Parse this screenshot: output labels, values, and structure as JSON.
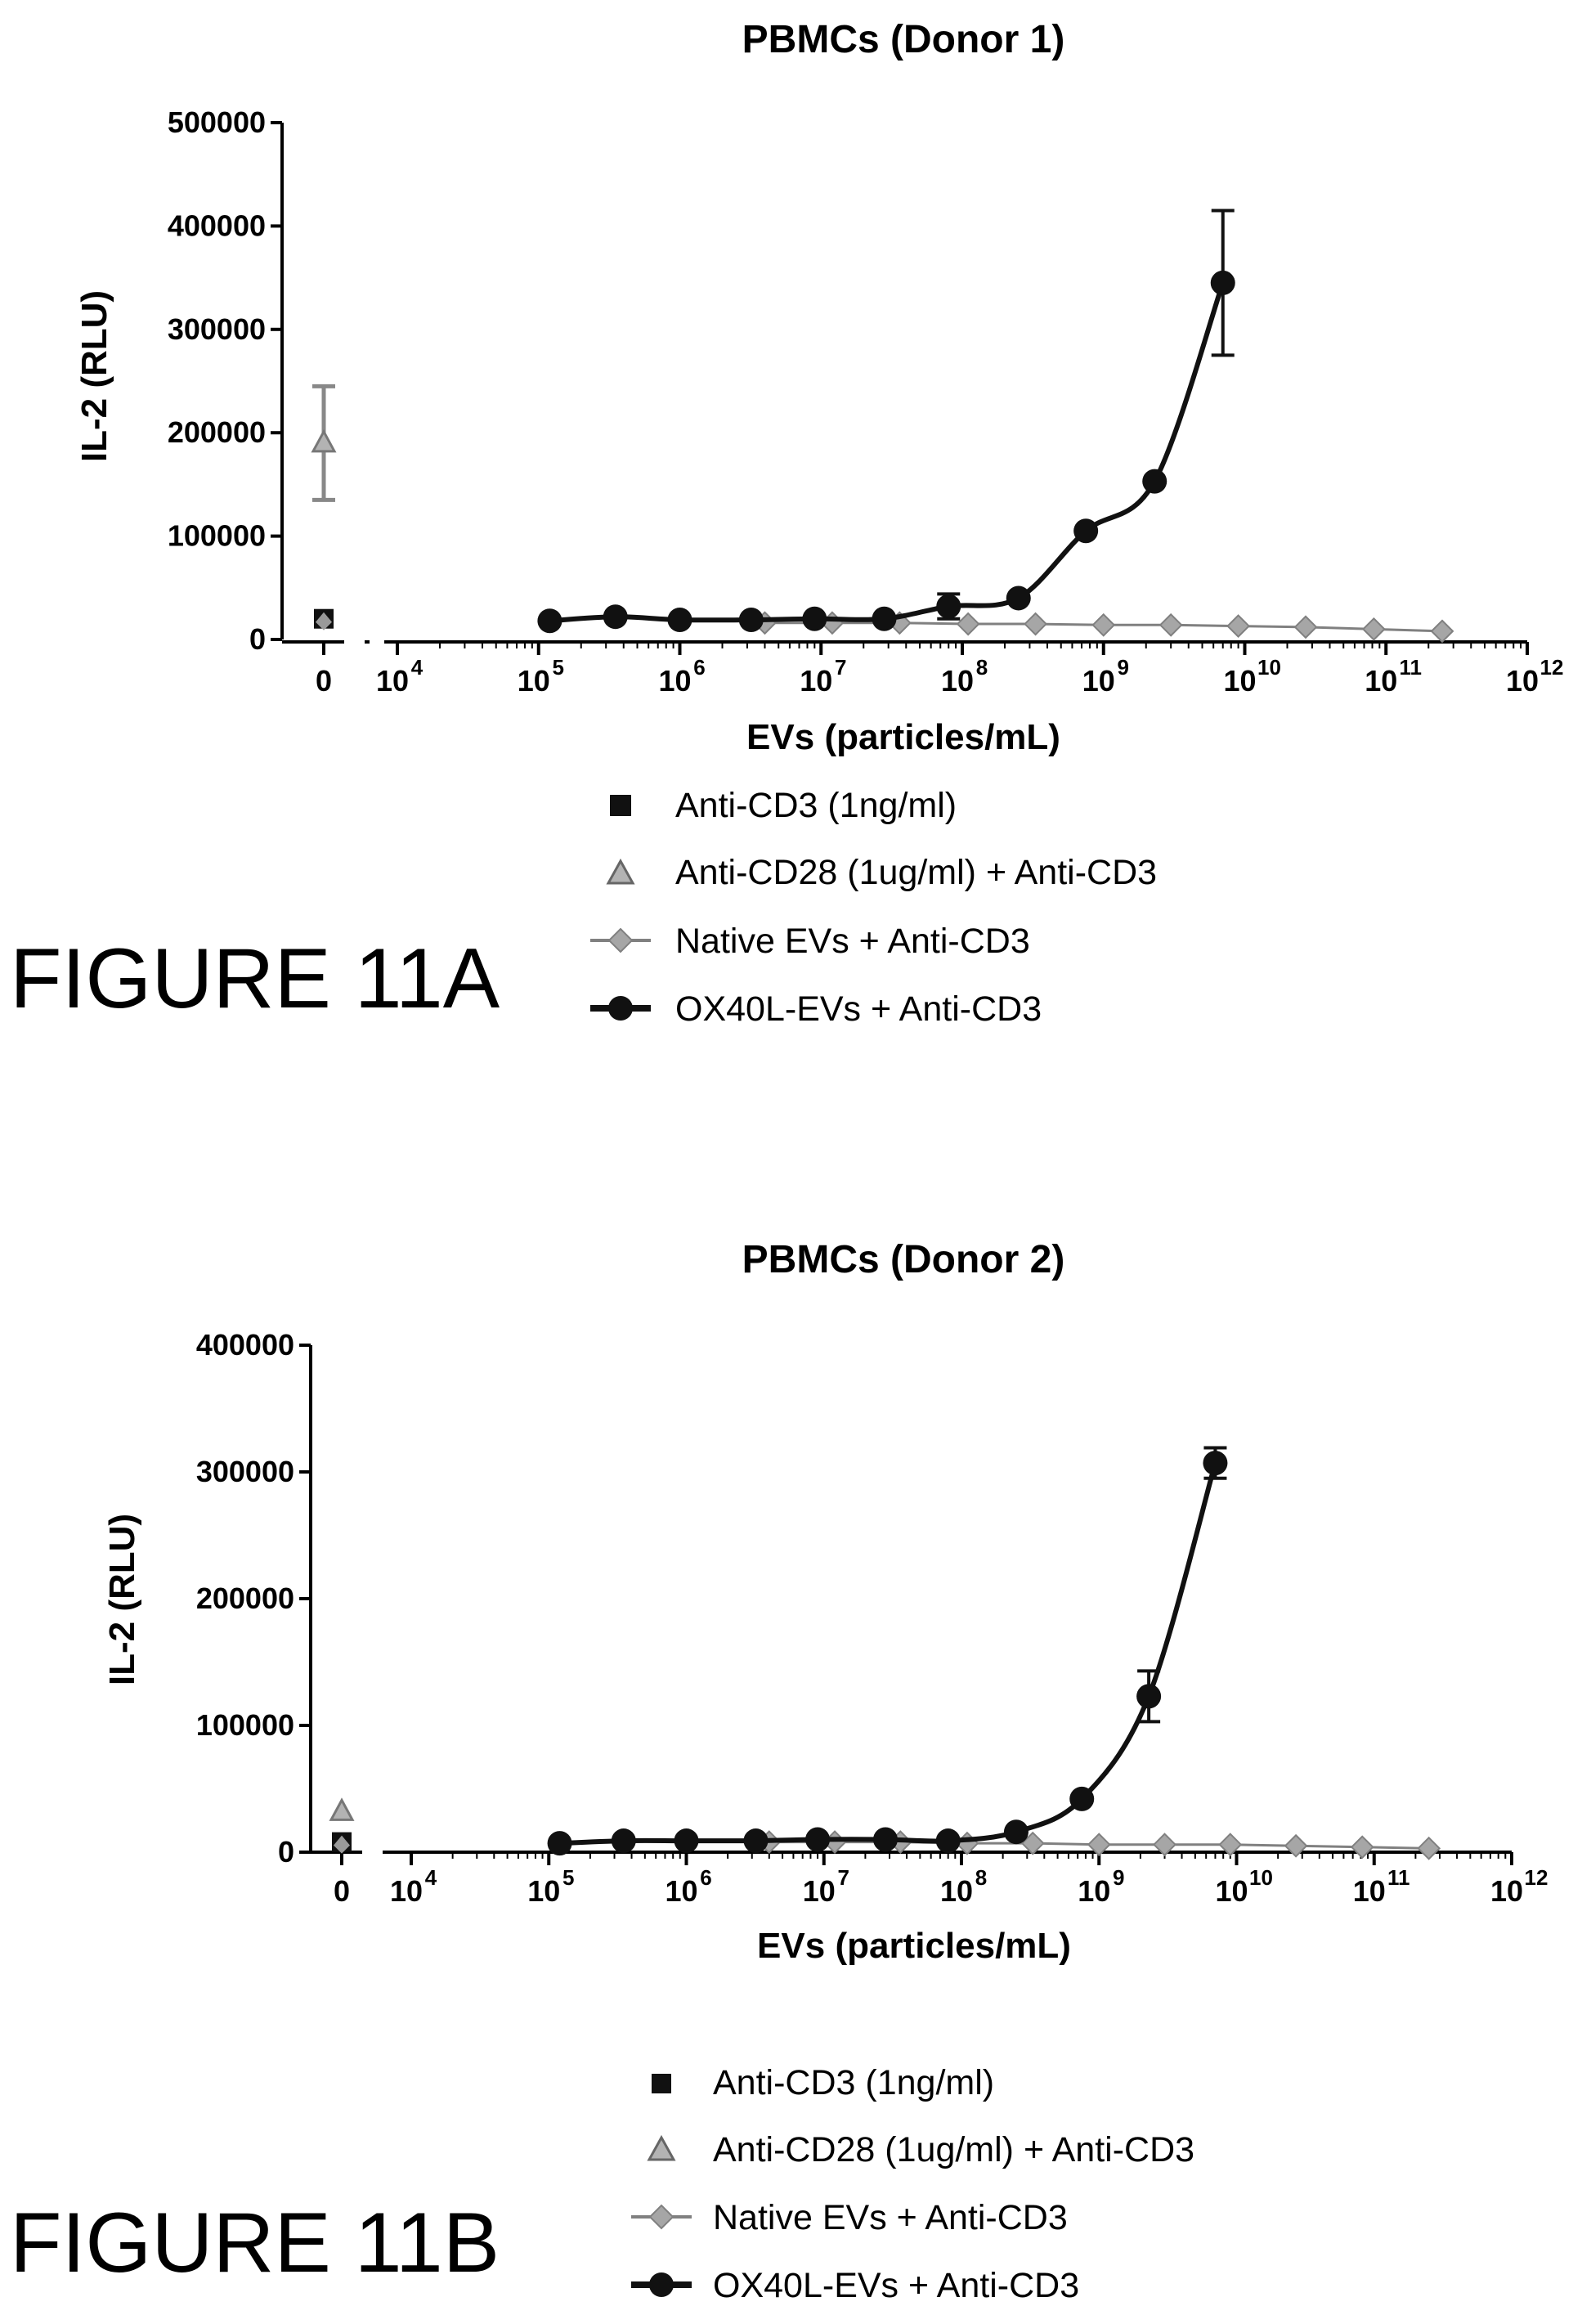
{
  "figures": [
    {
      "figure_label": "FIGURE 11A",
      "legend": [
        {
          "label": "Anti-CD3 (1ng/ml)",
          "marker": "square-icon"
        },
        {
          "label": "Anti-CD28 (1ug/ml) + Anti-CD3",
          "marker": "triangle-icon"
        },
        {
          "label": "Native EVs + Anti-CD3",
          "marker": "diamond-line-icon"
        },
        {
          "label": "OX40L-EVs + Anti-CD3",
          "marker": "circle-line-icon"
        }
      ]
    },
    {
      "figure_label": "FIGURE 11B",
      "legend": [
        {
          "label": "Anti-CD3 (1ng/ml)",
          "marker": "square-icon"
        },
        {
          "label": "Anti-CD28 (1ug/ml) + Anti-CD3",
          "marker": "triangle-icon"
        },
        {
          "label": "Native EVs + Anti-CD3",
          "marker": "diamond-line-icon"
        },
        {
          "label": "OX40L-EVs + Anti-CD3",
          "marker": "circle-line-icon"
        }
      ]
    }
  ],
  "colors": {
    "ox40l": "#111111",
    "native": "#a6a6a6",
    "native_stroke": "#808080",
    "anti_cd28": "#b3b3b3",
    "anti_cd3": "#111111",
    "axis": "#000000"
  },
  "chart_data": [
    {
      "type": "scatter",
      "title": "PBMCs (Donor 1)",
      "xlabel": "EVs (particles/mL)",
      "ylabel": "IL-2 (RLU)",
      "x_scale": "log10",
      "xlim": [
        10000,
        1000000000000
      ],
      "ylim": [
        0,
        500000
      ],
      "yticks": [
        0,
        100000,
        200000,
        300000,
        400000,
        500000
      ],
      "ytick_labels": [
        "0",
        "100000",
        "200000",
        "300000",
        "400000",
        "500000"
      ],
      "xticks": [
        {
          "base": "0",
          "exp": ""
        },
        {
          "base": "10",
          "exp": "4"
        },
        {
          "base": "10",
          "exp": "5"
        },
        {
          "base": "10",
          "exp": "6"
        },
        {
          "base": "10",
          "exp": "7"
        },
        {
          "base": "10",
          "exp": "8"
        },
        {
          "base": "10",
          "exp": "9"
        },
        {
          "base": "10",
          "exp": "10"
        },
        {
          "base": "10",
          "exp": "11"
        },
        {
          "base": "10",
          "exp": "12"
        }
      ],
      "grid": false,
      "legend_position": "bottom",
      "zero_controls": [
        {
          "name": "Anti-CD3 (1ng/ml)",
          "x": 0,
          "y": 20000
        },
        {
          "name": "Anti-CD28 (1ug/ml) + Anti-CD3",
          "x": 0,
          "y": 190000,
          "error": 55000
        }
      ],
      "series": [
        {
          "name": "OX40L-EVs + Anti-CD3",
          "points": [
            {
              "x": 120000,
              "y": 18000
            },
            {
              "x": 350000,
              "y": 22000
            },
            {
              "x": 1000000,
              "y": 19000
            },
            {
              "x": 3200000,
              "y": 19000
            },
            {
              "x": 9000000,
              "y": 20000
            },
            {
              "x": 28000000,
              "y": 20000
            },
            {
              "x": 80000000,
              "y": 32000,
              "error": 12000
            },
            {
              "x": 250000000,
              "y": 40000
            },
            {
              "x": 750000000,
              "y": 105000
            },
            {
              "x": 2300000000,
              "y": 153000
            },
            {
              "x": 7000000000,
              "y": 345000,
              "error": 70000
            }
          ]
        },
        {
          "name": "Native EVs + Anti-CD3",
          "points": [
            {
              "x": 4000000,
              "y": 16000
            },
            {
              "x": 12000000,
              "y": 16000
            },
            {
              "x": 36000000,
              "y": 16000
            },
            {
              "x": 110000000,
              "y": 15000
            },
            {
              "x": 330000000,
              "y": 15000
            },
            {
              "x": 1000000000,
              "y": 14000
            },
            {
              "x": 3000000000,
              "y": 14000
            },
            {
              "x": 9000000000,
              "y": 13000
            },
            {
              "x": 27000000000,
              "y": 12000
            },
            {
              "x": 82000000000,
              "y": 10000
            },
            {
              "x": 250000000000,
              "y": 8000
            }
          ]
        }
      ]
    },
    {
      "type": "scatter",
      "title": "PBMCs (Donor 2)",
      "xlabel": "EVs (particles/mL)",
      "ylabel": "IL-2 (RLU)",
      "x_scale": "log10",
      "xlim": [
        10000,
        1000000000000
      ],
      "ylim": [
        0,
        400000
      ],
      "yticks": [
        0,
        100000,
        200000,
        300000,
        400000
      ],
      "ytick_labels": [
        "0",
        "100000",
        "200000",
        "300000",
        "400000"
      ],
      "xticks": [
        {
          "base": "0",
          "exp": ""
        },
        {
          "base": "10",
          "exp": "4"
        },
        {
          "base": "10",
          "exp": "5"
        },
        {
          "base": "10",
          "exp": "6"
        },
        {
          "base": "10",
          "exp": "7"
        },
        {
          "base": "10",
          "exp": "8"
        },
        {
          "base": "10",
          "exp": "9"
        },
        {
          "base": "10",
          "exp": "10"
        },
        {
          "base": "10",
          "exp": "11"
        },
        {
          "base": "10",
          "exp": "12"
        }
      ],
      "grid": false,
      "legend_position": "bottom",
      "zero_controls": [
        {
          "name": "Anti-CD3 (1ng/ml)",
          "x": 0,
          "y": 8000
        },
        {
          "name": "Anti-CD28 (1ug/ml) + Anti-CD3",
          "x": 0,
          "y": 32000
        }
      ],
      "series": [
        {
          "name": "OX40L-EVs + Anti-CD3",
          "points": [
            {
              "x": 120000,
              "y": 7000
            },
            {
              "x": 350000,
              "y": 9000
            },
            {
              "x": 1000000,
              "y": 9000
            },
            {
              "x": 3200000,
              "y": 9000
            },
            {
              "x": 9000000,
              "y": 10000
            },
            {
              "x": 28000000,
              "y": 10000
            },
            {
              "x": 80000000,
              "y": 9000
            },
            {
              "x": 250000000,
              "y": 16000
            },
            {
              "x": 750000000,
              "y": 42000
            },
            {
              "x": 2300000000,
              "y": 123000,
              "error": 20000
            },
            {
              "x": 7000000000,
              "y": 307000,
              "error": 12000
            }
          ]
        },
        {
          "name": "Native EVs + Anti-CD3",
          "points": [
            {
              "x": 4000000,
              "y": 8000
            },
            {
              "x": 12000000,
              "y": 8000
            },
            {
              "x": 36000000,
              "y": 8000
            },
            {
              "x": 110000000,
              "y": 7000
            },
            {
              "x": 330000000,
              "y": 7000
            },
            {
              "x": 1000000000,
              "y": 6000
            },
            {
              "x": 3000000000,
              "y": 6000
            },
            {
              "x": 9000000000,
              "y": 6000
            },
            {
              "x": 27000000000,
              "y": 5000
            },
            {
              "x": 82000000000,
              "y": 4000
            },
            {
              "x": 250000000000,
              "y": 3000
            }
          ]
        }
      ]
    }
  ]
}
